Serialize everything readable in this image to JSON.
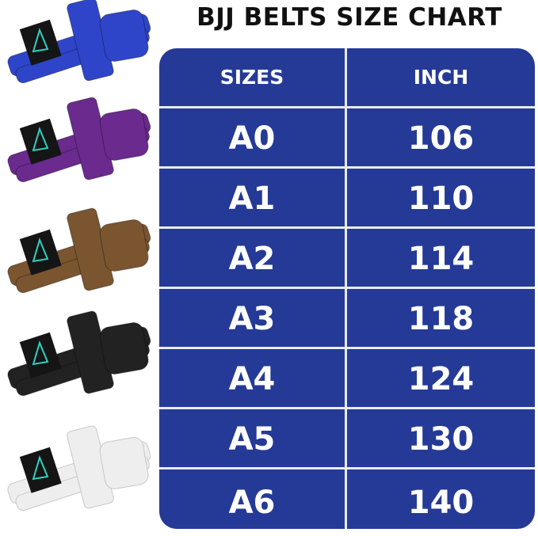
{
  "title": "BJJ BELTS SIZE CHART",
  "colors": {
    "table_bg": "#253a96",
    "text": "#ffffff",
    "title": "#111111"
  },
  "belts": [
    {
      "name": "blue",
      "color": "#2f45c9"
    },
    {
      "name": "purple",
      "color": "#6a2a8e"
    },
    {
      "name": "brown",
      "color": "#7a5530"
    },
    {
      "name": "black",
      "color": "#222222"
    },
    {
      "name": "white",
      "color": "#eeeeee"
    }
  ],
  "table": {
    "headers": [
      "SIZES",
      "INCH"
    ],
    "rows": [
      [
        "A0",
        "106"
      ],
      [
        "A1",
        "110"
      ],
      [
        "A2",
        "114"
      ],
      [
        "A3",
        "118"
      ],
      [
        "A4",
        "124"
      ],
      [
        "A5",
        "130"
      ],
      [
        "A6",
        "140"
      ]
    ]
  }
}
